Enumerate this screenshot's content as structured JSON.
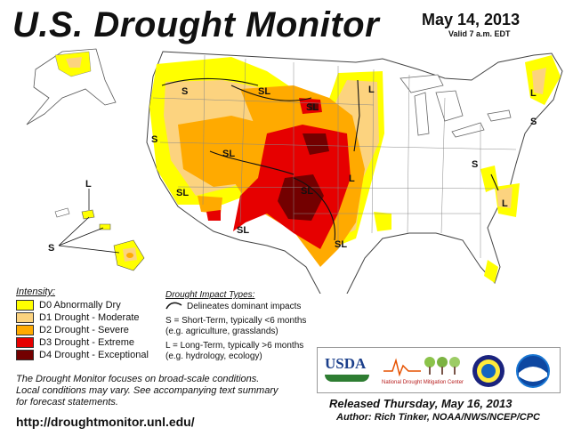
{
  "header": {
    "title": "U.S. Drought Monitor",
    "date": "May 14, 2013",
    "valid": "Valid 7 a.m. EDT"
  },
  "legend": {
    "title": "Intensity:",
    "items": [
      {
        "label": "D0 Abnormally Dry",
        "color": "#ffff00"
      },
      {
        "label": "D1 Drought - Moderate",
        "color": "#fcd37f"
      },
      {
        "label": "D2 Drought - Severe",
        "color": "#ffaa00"
      },
      {
        "label": "D3 Drought - Extreme",
        "color": "#e60000"
      },
      {
        "label": "D4 Drought - Exceptional",
        "color": "#730000"
      }
    ]
  },
  "impact_types": {
    "title": "Drought Impact Types:",
    "delineates": "Delineates dominant impacts",
    "short_term_line1": "S = Short-Term, typically <6 months",
    "short_term_line2": "(e.g. agriculture, grasslands)",
    "long_term_line1": "L = Long-Term, typically >6 months",
    "long_term_line2": "(e.g. hydrology, ecology)"
  },
  "note": {
    "line1": "The Drought Monitor focuses on broad-scale conditions.",
    "line2": "Local conditions may vary. See accompanying text summary",
    "line3": "for forecast statements."
  },
  "url": "http://droughtmonitor.unl.edu/",
  "footer": {
    "released": "Released Thursday, May 16, 2013",
    "author": "Author: Rich Tinker, NOAA/NWS/NCEP/CPC"
  },
  "logos": {
    "usda": "USDA",
    "ndmc_line1": "National",
    "ndmc_line2": "Drought Mitigation Center"
  },
  "map_labels": {
    "s": "S",
    "l": "L",
    "sl": "SL"
  }
}
